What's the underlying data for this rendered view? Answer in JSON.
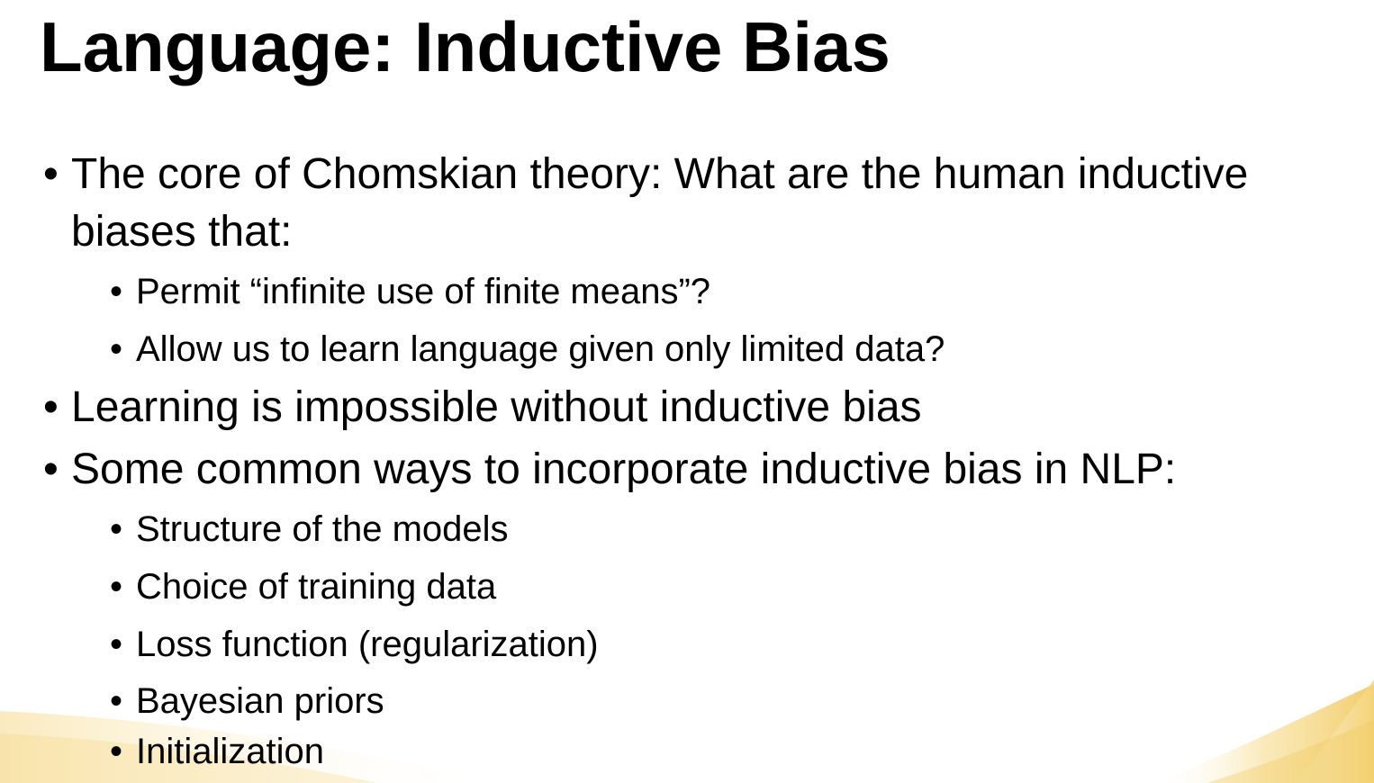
{
  "slide": {
    "title": "Language: Inductive Bias",
    "bullet_glyph": "•",
    "accent_color": "#f3cf6d",
    "bullets": [
      {
        "line1": "The core of Chomskian theory: What are the human inductive",
        "line2": "biases that:",
        "children": [
          "Permit “infinite use of finite means”?",
          "Allow us to learn language given only limited data?"
        ]
      },
      {
        "line1": "Learning is impossible without inductive bias"
      },
      {
        "line1": "Some common ways to incorporate inductive bias in NLP:",
        "children": [
          "Structure of the models",
          "Choice of training data",
          "Loss function (regularization)",
          "Bayesian priors",
          "Initialization"
        ]
      }
    ]
  }
}
